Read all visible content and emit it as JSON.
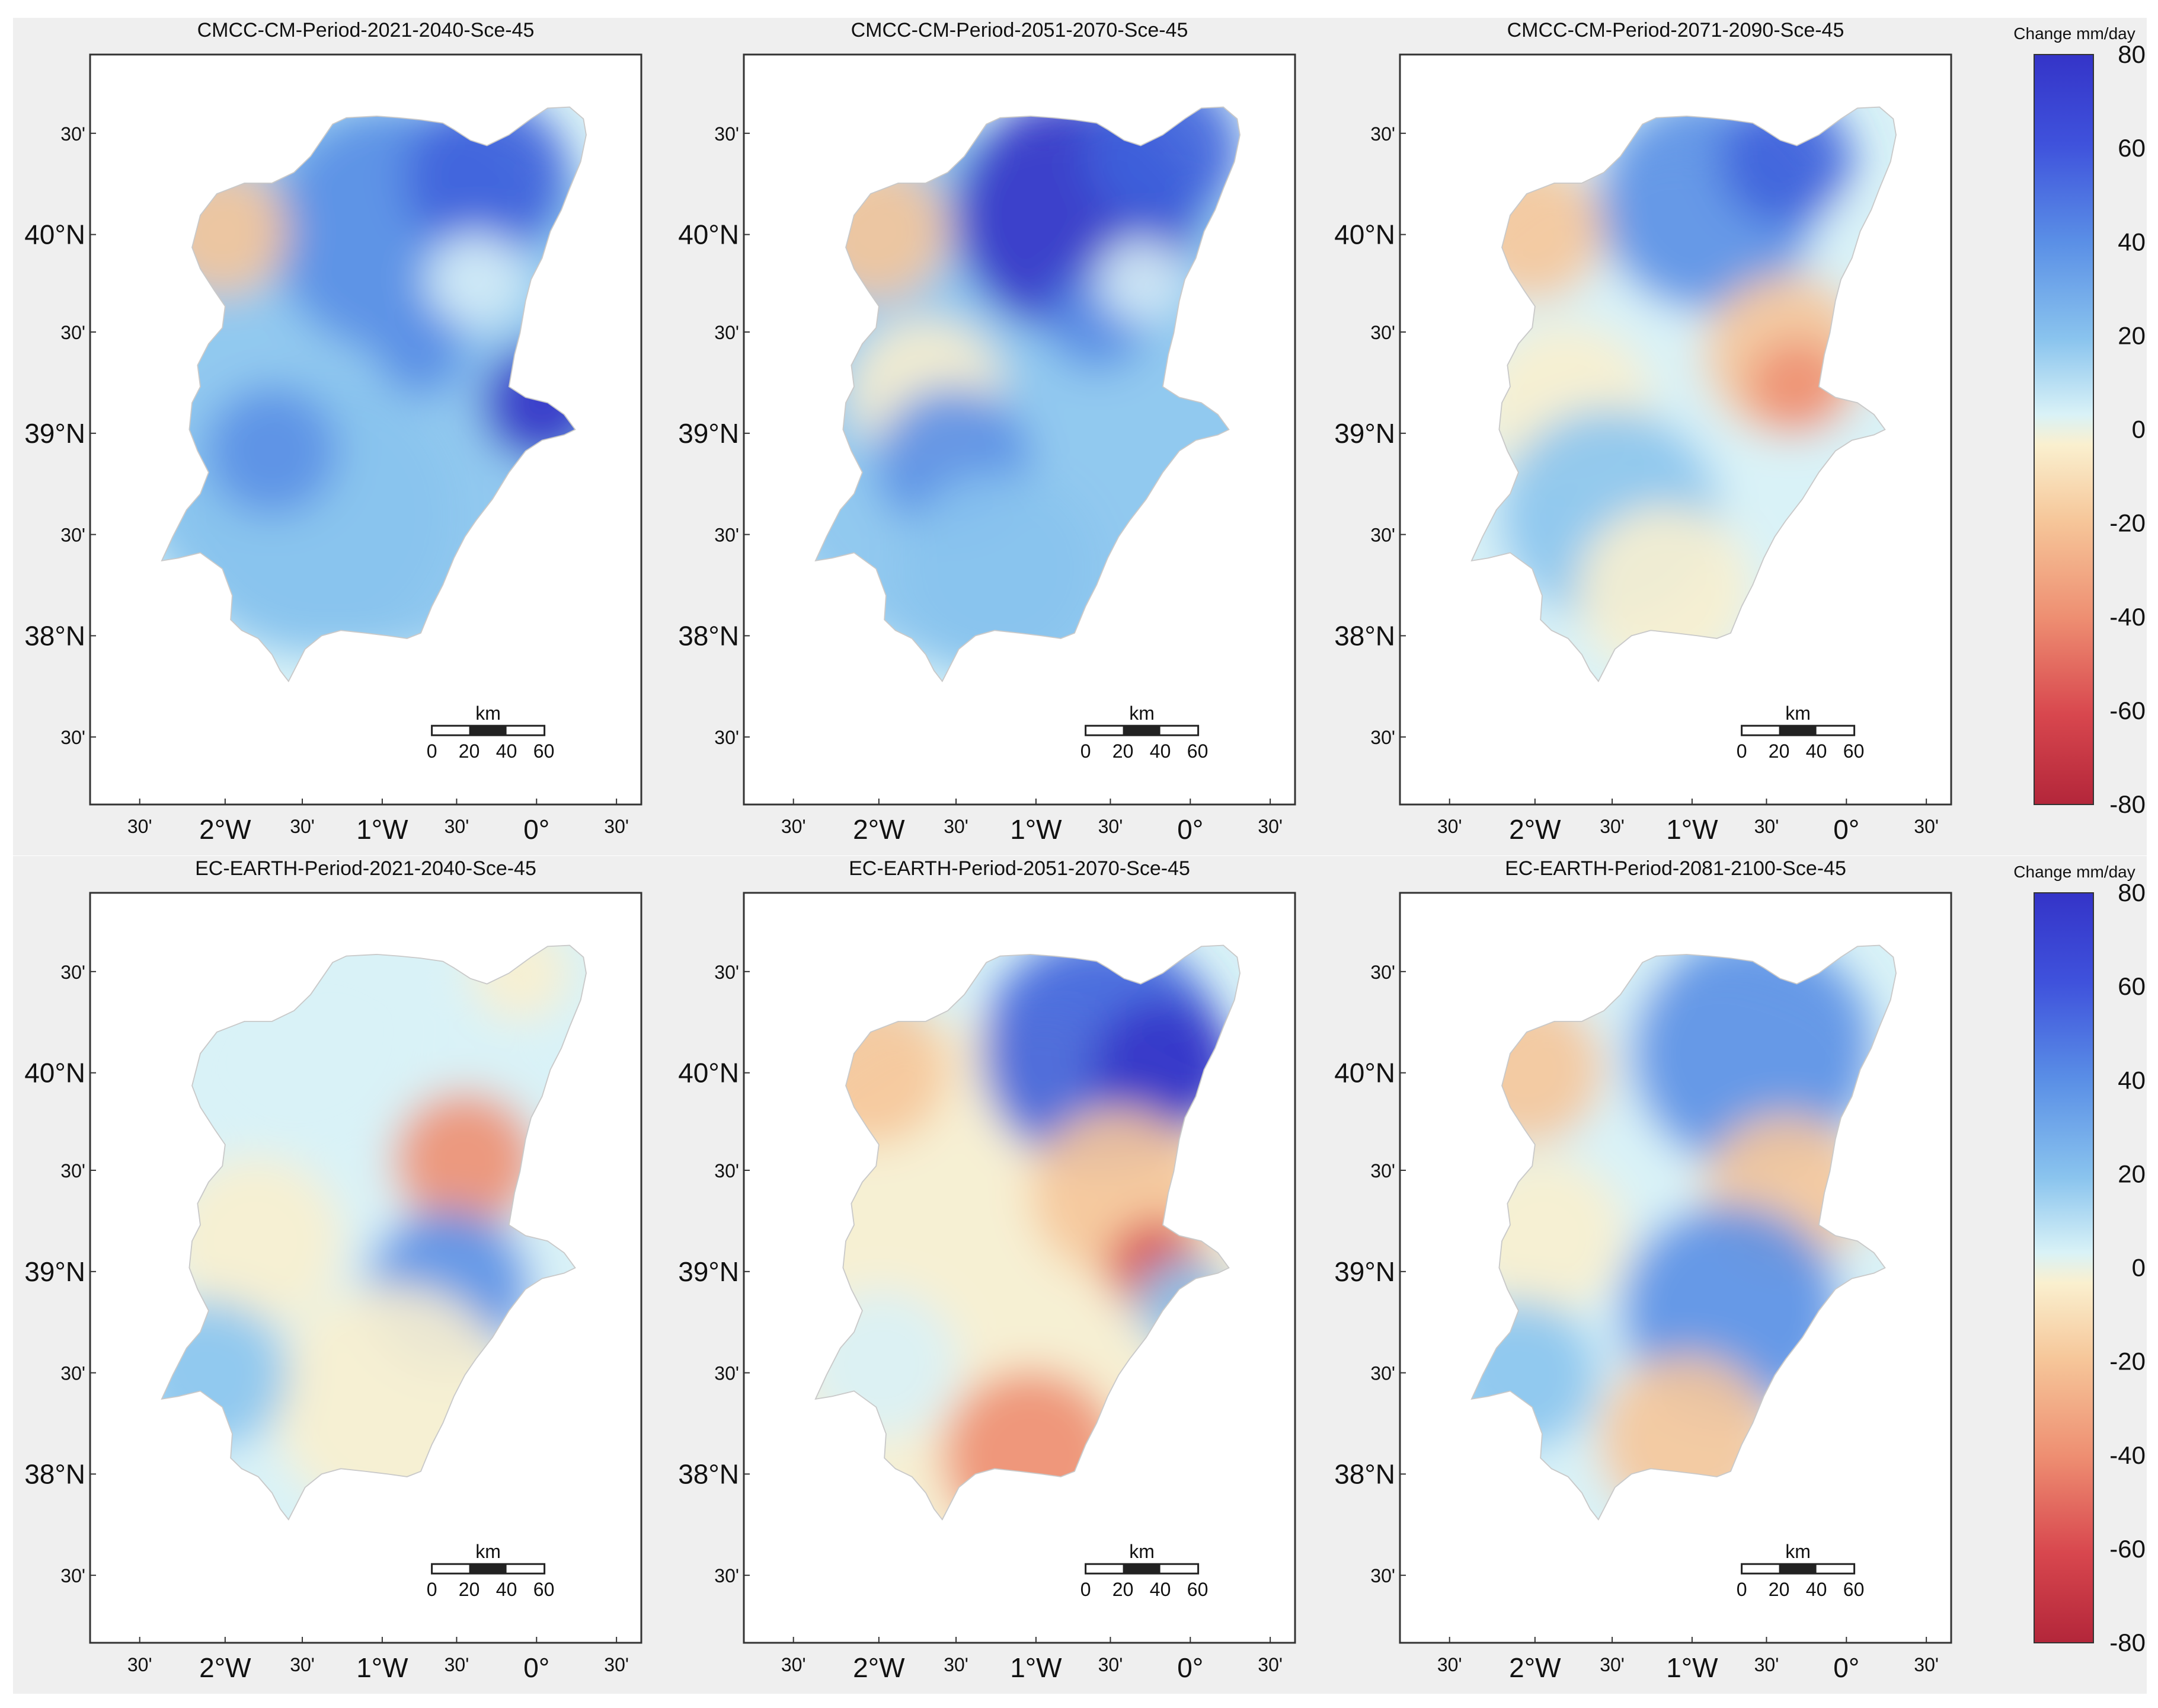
{
  "rows": [
    {
      "legend": {
        "title": "Change mm/day",
        "ticks": [
          "80",
          "60",
          "40",
          "20",
          "0",
          "-20",
          "-40",
          "-60",
          "-80"
        ]
      },
      "maps": [
        {
          "title": "CMCC-CM-Period-2021-2040-Sce-45"
        },
        {
          "title": "CMCC-CM-Period-2051-2070-Sce-45"
        },
        {
          "title": "CMCC-CM-Period-2071-2090-Sce-45"
        }
      ]
    },
    {
      "legend": {
        "title": "Change mm/day",
        "ticks": [
          "80",
          "60",
          "40",
          "20",
          "0",
          "-20",
          "-40",
          "-60",
          "-80"
        ]
      },
      "maps": [
        {
          "title": "EC-EARTH-Period-2021-2040-Sce-45"
        },
        {
          "title": "EC-EARTH-Period-2051-2070-Sce-45"
        },
        {
          "title": "EC-EARTH-Period-2081-2100-Sce-45"
        }
      ]
    }
  ],
  "axes": {
    "lat_labels": [
      "30'",
      "40°N",
      "30'",
      "39°N",
      "30'",
      "38°N",
      "30'"
    ],
    "lon_labels": [
      "30'",
      "2°W",
      "30'",
      "1°W",
      "30'",
      "0°",
      "30'"
    ]
  },
  "scalebar": {
    "unit": "km",
    "ticks": [
      "0",
      "20",
      "40",
      "60"
    ]
  },
  "colors": {
    "panel_bg": "#efefef",
    "scale": [
      "#3434c8",
      "#3f62dc",
      "#5a8fe6",
      "#8ac4ee",
      "#d9f2f7",
      "#faf0cf",
      "#f6c79a",
      "#ee8f72",
      "#d8474e",
      "#b3263a"
    ]
  }
}
